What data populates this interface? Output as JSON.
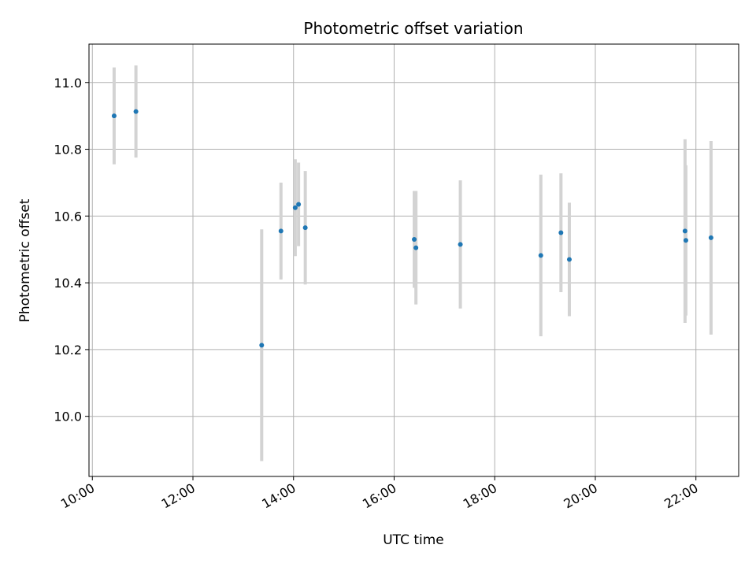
{
  "chart_data": {
    "type": "scatter",
    "title": "Photometric offset variation",
    "xlabel": "UTC time",
    "ylabel": "Photometric offset",
    "xlim": [
      "09:56",
      "22:51"
    ],
    "ylim": [
      9.82,
      11.115
    ],
    "xticks": [
      "10:00",
      "12:00",
      "14:00",
      "16:00",
      "18:00",
      "20:00",
      "22:00"
    ],
    "yticks": [
      10.0,
      10.2,
      10.4,
      10.6,
      10.8,
      11.0
    ],
    "ytick_labels": [
      "10.0",
      "10.2",
      "10.4",
      "10.6",
      "10.8",
      "11.0"
    ],
    "grid": true,
    "marker_color": "#1f77b4",
    "errorbar_color": "#d3d3d3",
    "points": [
      {
        "time": "10:26",
        "y": 10.9,
        "err": 0.145
      },
      {
        "time": "10:52",
        "y": 10.913,
        "err": 0.138
      },
      {
        "time": "13:22",
        "y": 10.213,
        "err": 0.347
      },
      {
        "time": "13:45",
        "y": 10.555,
        "err": 0.145
      },
      {
        "time": "14:02",
        "y": 10.625,
        "err": 0.145
      },
      {
        "time": "14:06",
        "y": 10.635,
        "err": 0.125
      },
      {
        "time": "14:14",
        "y": 10.565,
        "err": 0.17
      },
      {
        "time": "16:24",
        "y": 10.53,
        "err": 0.145
      },
      {
        "time": "16:26",
        "y": 10.505,
        "err": 0.17
      },
      {
        "time": "17:19",
        "y": 10.515,
        "err": 0.192
      },
      {
        "time": "18:55",
        "y": 10.482,
        "err": 0.242
      },
      {
        "time": "19:19",
        "y": 10.55,
        "err": 0.178
      },
      {
        "time": "19:29",
        "y": 10.47,
        "err": 0.17
      },
      {
        "time": "21:47",
        "y": 10.555,
        "err": 0.275
      },
      {
        "time": "21:48",
        "y": 10.527,
        "err": 0.225
      },
      {
        "time": "22:18",
        "y": 10.535,
        "err": 0.29
      }
    ]
  }
}
